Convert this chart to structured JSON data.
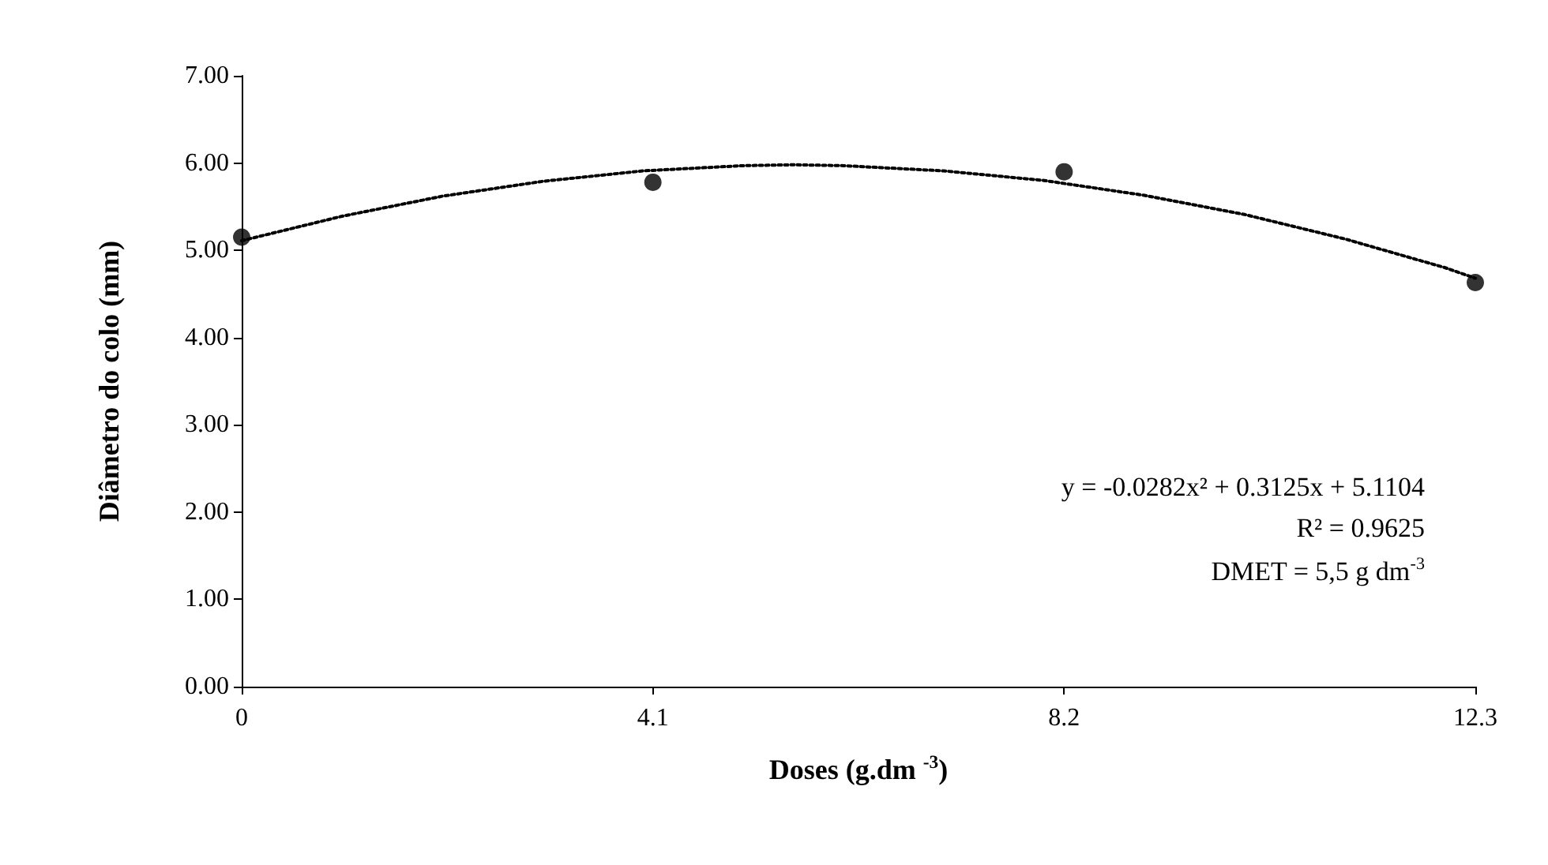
{
  "chart_data": {
    "type": "scatter",
    "xlabel": "Doses (g.dm $^{-3}$)",
    "ylabel": "Diâmetro do colo (mm)",
    "x": [
      0,
      4.1,
      8.2,
      12.3
    ],
    "series": [
      {
        "color": "#000000",
        "marker": "circle",
        "values": [
          5.15,
          5.78,
          5.9,
          4.63
        ]
      },
      {
        "type": "line",
        "color": "#000000",
        "marker": "none",
        "line_style": "dotted",
        "x": [
          0,
          1,
          2,
          3,
          4,
          5,
          5.5,
          6,
          7,
          8,
          9,
          10,
          11,
          12,
          12.3
        ],
        "values": [
          5.11,
          5.39,
          5.62,
          5.79,
          5.91,
          5.97,
          5.98,
          5.97,
          5.91,
          5.8,
          5.63,
          5.41,
          5.13,
          4.8,
          4.68
        ]
      }
    ],
    "xlim": [
      0,
      12.3
    ],
    "xticks": [
      0,
      4.1,
      8.2,
      12.3
    ],
    "ylim": [
      0,
      7
    ],
    "yticks": [
      {
        "value": 0,
        "label": "0.00"
      },
      {
        "value": 1,
        "label": "1.00"
      },
      {
        "value": 2,
        "label": "2.00"
      },
      {
        "value": 3,
        "label": "3.00"
      },
      {
        "value": 4,
        "label": "4.00"
      },
      {
        "value": 5,
        "label": "5.00"
      },
      {
        "value": 6,
        "label": "6.00"
      },
      {
        "value": 7,
        "label": "7.00"
      }
    ],
    "grid": false,
    "annotations": [
      "y = -0.0282x² + 0.3125x + 5.1104",
      "R² = 0.9625",
      "DMET = 5,5 g dm$^{-3}$"
    ]
  }
}
